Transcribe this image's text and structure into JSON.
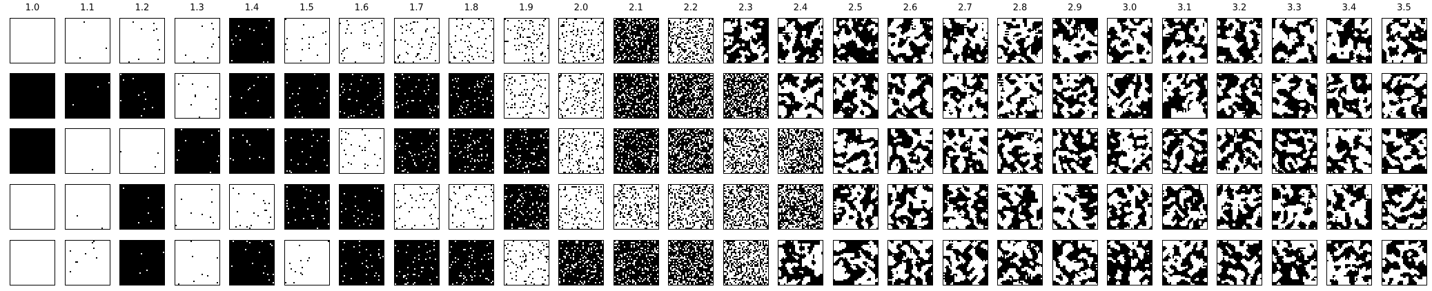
{
  "figure": {
    "column_labels": [
      "1.0",
      "1.1",
      "1.2",
      "1.3",
      "1.4",
      "1.5",
      "1.6",
      "1.7",
      "1.8",
      "1.9",
      "2.0",
      "2.1",
      "2.2",
      "2.3",
      "2.4",
      "2.5",
      "2.6",
      "2.7",
      "2.8",
      "2.9",
      "3.0",
      "3.1",
      "3.2",
      "3.3",
      "3.4",
      "3.5"
    ],
    "rows": 5,
    "grid_resolution": 32,
    "colors": {
      "on": "#000000",
      "off": "#ffffff",
      "frame": "#000000"
    },
    "panel_base_state": [
      [
        "white",
        "black",
        "black",
        "white",
        "white"
      ],
      [
        "white",
        "black",
        "white",
        "white",
        "white"
      ],
      [
        "white",
        "black",
        "white",
        "black",
        "black"
      ],
      [
        "white",
        "white",
        "black",
        "white",
        "white"
      ],
      [
        "black",
        "black",
        "black",
        "white",
        "black"
      ],
      [
        "white",
        "black",
        "black",
        "black",
        "white"
      ],
      [
        "white",
        "black",
        "white",
        "black",
        "black"
      ],
      [
        "white",
        "black",
        "black",
        "white",
        "black"
      ],
      [
        "white",
        "black",
        "black",
        "white",
        "black"
      ],
      [
        "white",
        "white",
        "black",
        "black",
        "white"
      ],
      [
        "white",
        "white",
        "white",
        "white",
        "black"
      ],
      [
        "black",
        "black",
        "black",
        "white",
        "black"
      ],
      [
        "white",
        "black",
        "black",
        "white",
        "black"
      ],
      [
        "mixed",
        "black",
        "white",
        "white",
        "white"
      ],
      [
        "mixed",
        "mixed",
        "black",
        "black",
        "mixed"
      ],
      [
        "mixed",
        "mixed",
        "mixed",
        "mixed",
        "mixed"
      ],
      [
        "mixed",
        "mixed",
        "mixed",
        "mixed",
        "mixed"
      ],
      [
        "mixed",
        "mixed",
        "mixed",
        "mixed",
        "mixed"
      ],
      [
        "mixed",
        "mixed",
        "mixed",
        "mixed",
        "mixed"
      ],
      [
        "mixed",
        "mixed",
        "mixed",
        "mixed",
        "mixed"
      ],
      [
        "mixed",
        "mixed",
        "mixed",
        "mixed",
        "mixed"
      ],
      [
        "mixed",
        "mixed",
        "mixed",
        "mixed",
        "mixed"
      ],
      [
        "mixed",
        "mixed",
        "mixed",
        "mixed",
        "mixed"
      ],
      [
        "mixed",
        "mixed",
        "mixed",
        "mixed",
        "mixed"
      ],
      [
        "mixed",
        "mixed",
        "mixed",
        "mixed",
        "mixed"
      ],
      [
        "mixed",
        "mixed",
        "mixed",
        "mixed",
        "mixed"
      ]
    ],
    "flip_fraction": [
      0.0,
      0.004,
      0.006,
      0.01,
      0.015,
      0.02,
      0.03,
      0.04,
      0.06,
      0.08,
      0.12,
      0.2,
      0.3,
      0.38,
      0.45,
      0.5,
      0.5,
      0.5,
      0.5,
      0.5,
      0.5,
      0.5,
      0.5,
      0.5,
      0.5,
      0.5
    ]
  }
}
